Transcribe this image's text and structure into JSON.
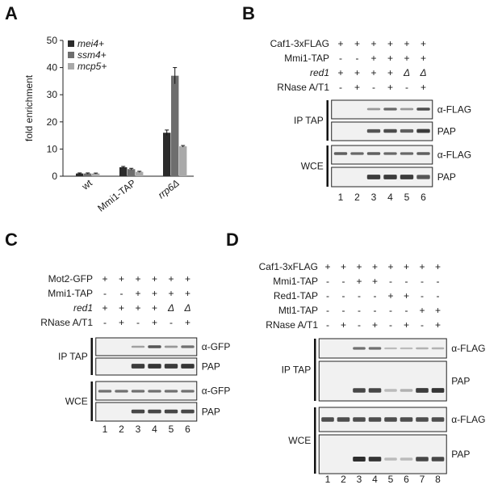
{
  "panels": {
    "A": {
      "letter": "A",
      "chart_data": {
        "type": "bar",
        "categories": [
          "wt",
          "Mmi1-TAP",
          "rrp6Δ"
        ],
        "series": [
          {
            "name": "mei4+",
            "values": [
              1.0,
              3.3,
              16.0
            ],
            "errors": [
              0.2,
              0.3,
              1.0
            ],
            "color": "#2b2b2b"
          },
          {
            "name": "ssm4+",
            "values": [
              1.0,
              2.6,
              37.0
            ],
            "errors": [
              0.2,
              0.3,
              3.0
            ],
            "color": "#6e6e6e"
          },
          {
            "name": "mcp5+",
            "values": [
              1.0,
              1.6,
              11.0
            ],
            "errors": [
              0.15,
              0.2,
              0.3
            ],
            "color": "#a9a9a9"
          }
        ],
        "ylabel": "fold enrichment",
        "ylim": [
          0,
          50
        ],
        "yticks": [
          "0",
          "10",
          "20",
          "30",
          "40",
          "50"
        ],
        "legend": "top-left"
      }
    },
    "B": {
      "letter": "B",
      "conditions": [
        {
          "name": "Caf1-3xFLAG",
          "italic": false,
          "values": [
            "+",
            "+",
            "+",
            "+",
            "+",
            "+"
          ]
        },
        {
          "name": "Mmi1-TAP",
          "italic": false,
          "values": [
            "-",
            "-",
            "+",
            "+",
            "+",
            "+"
          ]
        },
        {
          "name": "red1",
          "italic": true,
          "values": [
            "+",
            "+",
            "+",
            "+",
            "Δ",
            "Δ"
          ]
        },
        {
          "name": "RNase A/T1",
          "italic": false,
          "values": [
            "-",
            "+",
            "-",
            "+",
            "-",
            "+"
          ]
        }
      ],
      "groups": [
        {
          "label": "IP TAP",
          "blots": [
            {
              "label": "α-FLAG",
              "bands": [
                0,
                0,
                0.35,
                0.65,
                0.35,
                0.8
              ]
            },
            {
              "label": "PAP",
              "bands": [
                0,
                0,
                0.75,
                0.8,
                0.7,
                0.9
              ]
            }
          ]
        },
        {
          "label": "WCE",
          "blots": [
            {
              "label": "α-FLAG",
              "bands": [
                0.7,
                0.65,
                0.7,
                0.65,
                0.65,
                0.7
              ]
            },
            {
              "label": "PAP",
              "bands": [
                0,
                0,
                0.9,
                0.9,
                0.9,
                0.75
              ]
            }
          ]
        }
      ],
      "lanes": [
        "1",
        "2",
        "3",
        "4",
        "5",
        "6"
      ]
    },
    "C": {
      "letter": "C",
      "conditions": [
        {
          "name": "Mot2-GFP",
          "italic": false,
          "values": [
            "+",
            "+",
            "+",
            "+",
            "+",
            "+"
          ]
        },
        {
          "name": "Mmi1-TAP",
          "italic": false,
          "values": [
            "-",
            "-",
            "+",
            "+",
            "+",
            "+"
          ]
        },
        {
          "name": "red1",
          "italic": true,
          "values": [
            "+",
            "+",
            "+",
            "+",
            "Δ",
            "Δ"
          ]
        },
        {
          "name": "RNase A/T1",
          "italic": false,
          "values": [
            "-",
            "+",
            "-",
            "+",
            "-",
            "+"
          ]
        }
      ],
      "groups": [
        {
          "label": "IP TAP",
          "blots": [
            {
              "label": "α-GFP",
              "bands": [
                0,
                0,
                0.3,
                0.75,
                0.35,
                0.6
              ]
            },
            {
              "label": "PAP",
              "bands": [
                0,
                0,
                0.9,
                0.95,
                0.9,
                0.95
              ]
            }
          ]
        },
        {
          "label": "WCE",
          "blots": [
            {
              "label": "α-GFP",
              "bands": [
                0.6,
                0.6,
                0.6,
                0.6,
                0.6,
                0.6
              ]
            },
            {
              "label": "PAP",
              "bands": [
                0,
                0,
                0.85,
                0.85,
                0.85,
                0.85
              ]
            }
          ]
        }
      ],
      "lanes": [
        "1",
        "2",
        "3",
        "4",
        "5",
        "6"
      ]
    },
    "D": {
      "letter": "D",
      "conditions": [
        {
          "name": "Caf1-3xFLAG",
          "italic": false,
          "values": [
            "+",
            "+",
            "+",
            "+",
            "+",
            "+",
            "+",
            "+"
          ]
        },
        {
          "name": "Mmi1-TAP",
          "italic": false,
          "values": [
            "-",
            "-",
            "+",
            "+",
            "-",
            "-",
            "-",
            "-"
          ]
        },
        {
          "name": "Red1-TAP",
          "italic": false,
          "values": [
            "-",
            "-",
            "-",
            "-",
            "+",
            "+",
            "-",
            "-"
          ]
        },
        {
          "name": "Mtl1-TAP",
          "italic": false,
          "values": [
            "-",
            "-",
            "-",
            "-",
            "-",
            "-",
            "+",
            "+"
          ]
        },
        {
          "name": "RNase A/T1",
          "italic": false,
          "values": [
            "-",
            "+",
            "-",
            "+",
            "-",
            "+",
            "-",
            "+"
          ]
        }
      ],
      "groups": [
        {
          "label": "IP TAP",
          "blots": [
            {
              "label": "α-FLAG",
              "bands": [
                0,
                0,
                0.6,
                0.6,
                0.15,
                0.15,
                0.2,
                0.2
              ]
            },
            {
              "label": "PAP",
              "bands": [
                0,
                0,
                0.85,
                0.85,
                0.15,
                0.2,
                0.9,
                0.95
              ]
            }
          ]
        },
        {
          "label": "WCE",
          "blots": [
            {
              "label": "α-FLAG",
              "bands": [
                0.8,
                0.8,
                0.8,
                0.8,
                0.8,
                0.8,
                0.8,
                0.8
              ]
            },
            {
              "label": "PAP",
              "bands": [
                0,
                0,
                1.0,
                0.95,
                0.15,
                0.15,
                0.85,
                0.85
              ]
            }
          ]
        }
      ],
      "lanes": [
        "1",
        "2",
        "3",
        "4",
        "5",
        "6",
        "7",
        "8"
      ]
    }
  }
}
